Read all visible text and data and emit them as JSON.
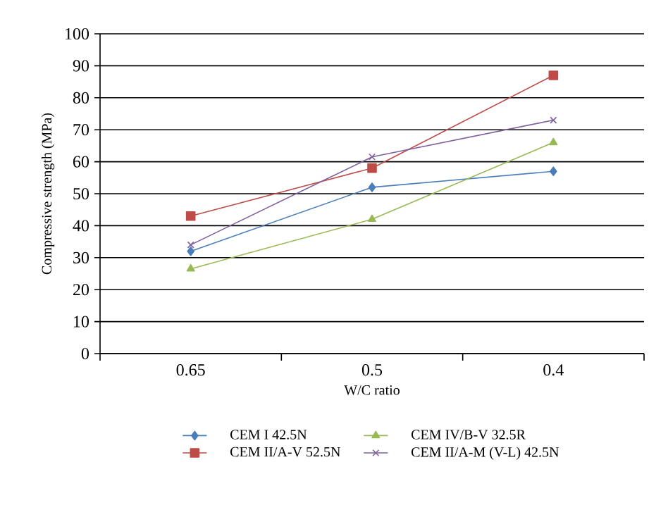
{
  "chart_data": {
    "type": "line",
    "xlabel": "W/C ratio",
    "ylabel": "Compressive strength (MPa)",
    "categories": [
      "0.65",
      "0.5",
      "0.4"
    ],
    "series": [
      {
        "name": "CEM I 42.5N",
        "color": "#4a7ebb",
        "marker": "diamond",
        "values": [
          32,
          52,
          57
        ]
      },
      {
        "name": "CEM IV/B-V 32.5R",
        "color": "#98b954",
        "marker": "triangle",
        "values": [
          26.5,
          42,
          66
        ]
      },
      {
        "name": "CEM II/A-V 52.5N",
        "color": "#be4b48",
        "marker": "square",
        "values": [
          43,
          58,
          87
        ]
      },
      {
        "name": "CEM II/A-M (V-L) 42.5N",
        "color": "#7d60a0",
        "marker": "cross",
        "values": [
          34,
          61.5,
          73
        ]
      }
    ],
    "ylim": [
      0,
      100
    ],
    "yticks": [
      0,
      10,
      20,
      30,
      40,
      50,
      60,
      70,
      80,
      90,
      100
    ],
    "grid": "y",
    "legend": "bottom",
    "line_style": "solid"
  }
}
